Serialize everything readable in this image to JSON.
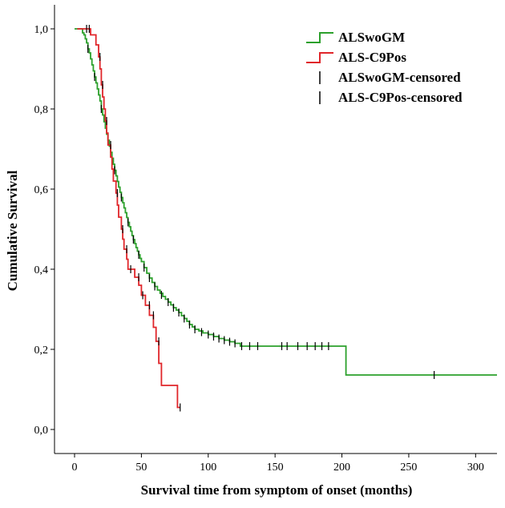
{
  "chart_data": {
    "type": "line",
    "subtype": "kaplan-meier step",
    "title": "",
    "xlabel": "Survival time from symptom of onset (months)",
    "ylabel": "Cumulative Survival",
    "xlim": [
      -15,
      316
    ],
    "ylim": [
      -0.06,
      1.06
    ],
    "x_ticks": [
      0,
      50,
      100,
      150,
      200,
      250,
      300
    ],
    "x_tick_labels": [
      "0",
      "50",
      "100",
      "150",
      "200",
      "250",
      "300"
    ],
    "y_ticks": [
      0.0,
      0.2,
      0.4,
      0.6,
      0.8,
      1.0
    ],
    "y_tick_labels": [
      "0,0",
      "0,2",
      "0,4",
      "0,6",
      "0,8",
      "1,0"
    ],
    "grid": false,
    "legend_position": "top-right",
    "legend": [
      {
        "label": "ALSwoGM",
        "symbol": "step",
        "color": "#2ca02c"
      },
      {
        "label": "ALS-C9Pos",
        "symbol": "step",
        "color": "#e0252a"
      },
      {
        "label": "ALSwoGM-censored",
        "symbol": "tick",
        "color": "#000000"
      },
      {
        "label": "ALS-C9Pos-censored",
        "symbol": "tick",
        "color": "#000000"
      }
    ],
    "series": [
      {
        "name": "ALSwoGM",
        "color": "#2ca02c",
        "steps": [
          [
            0,
            1.0
          ],
          [
            5,
            1.0
          ],
          [
            6,
            0.99
          ],
          [
            7,
            0.985
          ],
          [
            8,
            0.975
          ],
          [
            9,
            0.965
          ],
          [
            10,
            0.95
          ],
          [
            11,
            0.94
          ],
          [
            12,
            0.925
          ],
          [
            13,
            0.91
          ],
          [
            14,
            0.895
          ],
          [
            15,
            0.88
          ],
          [
            16,
            0.865
          ],
          [
            17,
            0.85
          ],
          [
            18,
            0.835
          ],
          [
            19,
            0.82
          ],
          [
            20,
            0.8
          ],
          [
            21,
            0.785
          ],
          [
            22,
            0.768
          ],
          [
            23,
            0.752
          ],
          [
            24,
            0.737
          ],
          [
            25,
            0.722
          ],
          [
            26,
            0.707
          ],
          [
            27,
            0.692
          ],
          [
            28,
            0.677
          ],
          [
            29,
            0.662
          ],
          [
            30,
            0.647
          ],
          [
            31,
            0.633
          ],
          [
            32,
            0.619
          ],
          [
            33,
            0.605
          ],
          [
            34,
            0.592
          ],
          [
            35,
            0.579
          ],
          [
            36,
            0.566
          ],
          [
            37,
            0.553
          ],
          [
            38,
            0.541
          ],
          [
            39,
            0.529
          ],
          [
            40,
            0.517
          ],
          [
            41,
            0.506
          ],
          [
            42,
            0.495
          ],
          [
            43,
            0.484
          ],
          [
            44,
            0.474
          ],
          [
            45,
            0.464
          ],
          [
            46,
            0.454
          ],
          [
            47,
            0.445
          ],
          [
            48,
            0.436
          ],
          [
            49,
            0.427
          ],
          [
            50,
            0.419
          ],
          [
            52,
            0.404
          ],
          [
            54,
            0.39
          ],
          [
            56,
            0.378
          ],
          [
            58,
            0.367
          ],
          [
            60,
            0.357
          ],
          [
            62,
            0.348
          ],
          [
            64,
            0.34
          ],
          [
            66,
            0.332
          ],
          [
            68,
            0.325
          ],
          [
            70,
            0.318
          ],
          [
            72,
            0.311
          ],
          [
            74,
            0.304
          ],
          [
            76,
            0.298
          ],
          [
            78,
            0.292
          ],
          [
            80,
            0.284
          ],
          [
            82,
            0.277
          ],
          [
            84,
            0.27
          ],
          [
            86,
            0.262
          ],
          [
            88,
            0.256
          ],
          [
            90,
            0.25
          ],
          [
            93,
            0.246
          ],
          [
            96,
            0.241
          ],
          [
            100,
            0.237
          ],
          [
            104,
            0.232
          ],
          [
            108,
            0.227
          ],
          [
            112,
            0.223
          ],
          [
            116,
            0.219
          ],
          [
            120,
            0.215
          ],
          [
            124,
            0.208
          ],
          [
            203,
            0.208
          ],
          [
            203,
            0.136
          ],
          [
            316,
            0.136
          ]
        ],
        "censored": [
          [
            10,
            0.95
          ],
          [
            15,
            0.88
          ],
          [
            20,
            0.8
          ],
          [
            25,
            0.722
          ],
          [
            30,
            0.647
          ],
          [
            35,
            0.579
          ],
          [
            40,
            0.517
          ],
          [
            44,
            0.474
          ],
          [
            48,
            0.436
          ],
          [
            52,
            0.404
          ],
          [
            56,
            0.378
          ],
          [
            60,
            0.357
          ],
          [
            65,
            0.336
          ],
          [
            70,
            0.318
          ],
          [
            74,
            0.304
          ],
          [
            78,
            0.292
          ],
          [
            82,
            0.277
          ],
          [
            86,
            0.262
          ],
          [
            90,
            0.25
          ],
          [
            95,
            0.243
          ],
          [
            100,
            0.237
          ],
          [
            104,
            0.232
          ],
          [
            108,
            0.227
          ],
          [
            112,
            0.223
          ],
          [
            116,
            0.219
          ],
          [
            120,
            0.215
          ],
          [
            125,
            0.208
          ],
          [
            131,
            0.208
          ],
          [
            137,
            0.208
          ],
          [
            155,
            0.208
          ],
          [
            159,
            0.208
          ],
          [
            167,
            0.208
          ],
          [
            174,
            0.208
          ],
          [
            180,
            0.208
          ],
          [
            185,
            0.208
          ],
          [
            190,
            0.208
          ],
          [
            269,
            0.136
          ]
        ]
      },
      {
        "name": "ALS-C9Pos",
        "color": "#e0252a",
        "steps": [
          [
            2,
            1.0
          ],
          [
            12,
            1.0
          ],
          [
            12,
            0.985
          ],
          [
            16,
            0.985
          ],
          [
            16,
            0.96
          ],
          [
            18,
            0.96
          ],
          [
            18,
            0.93
          ],
          [
            19,
            0.93
          ],
          [
            19,
            0.9
          ],
          [
            20,
            0.9
          ],
          [
            20,
            0.86
          ],
          [
            21,
            0.86
          ],
          [
            21,
            0.83
          ],
          [
            22,
            0.83
          ],
          [
            22,
            0.8
          ],
          [
            23,
            0.8
          ],
          [
            23,
            0.77
          ],
          [
            24,
            0.77
          ],
          [
            24,
            0.74
          ],
          [
            25,
            0.74
          ],
          [
            25,
            0.71
          ],
          [
            27,
            0.71
          ],
          [
            27,
            0.68
          ],
          [
            28,
            0.68
          ],
          [
            28,
            0.65
          ],
          [
            29,
            0.65
          ],
          [
            29,
            0.62
          ],
          [
            31,
            0.62
          ],
          [
            31,
            0.59
          ],
          [
            32,
            0.59
          ],
          [
            32,
            0.56
          ],
          [
            33,
            0.56
          ],
          [
            33,
            0.53
          ],
          [
            35,
            0.53
          ],
          [
            35,
            0.5
          ],
          [
            36,
            0.5
          ],
          [
            36,
            0.475
          ],
          [
            37,
            0.475
          ],
          [
            37,
            0.45
          ],
          [
            39,
            0.45
          ],
          [
            39,
            0.425
          ],
          [
            40,
            0.425
          ],
          [
            40,
            0.4
          ],
          [
            45,
            0.4
          ],
          [
            45,
            0.38
          ],
          [
            48,
            0.38
          ],
          [
            48,
            0.36
          ],
          [
            50,
            0.36
          ],
          [
            50,
            0.335
          ],
          [
            53,
            0.335
          ],
          [
            53,
            0.31
          ],
          [
            56,
            0.31
          ],
          [
            56,
            0.285
          ],
          [
            59,
            0.285
          ],
          [
            59,
            0.255
          ],
          [
            61,
            0.255
          ],
          [
            61,
            0.22
          ],
          [
            63,
            0.22
          ],
          [
            63,
            0.165
          ],
          [
            65,
            0.165
          ],
          [
            65,
            0.11
          ],
          [
            77,
            0.11
          ],
          [
            77,
            0.055
          ],
          [
            79,
            0.055
          ]
        ],
        "censored": [
          [
            9,
            1.0
          ],
          [
            11,
            1.0
          ],
          [
            19,
            0.93
          ],
          [
            21,
            0.86
          ],
          [
            24,
            0.77
          ],
          [
            27,
            0.71
          ],
          [
            32,
            0.59
          ],
          [
            36,
            0.5
          ],
          [
            39,
            0.45
          ],
          [
            42,
            0.4
          ],
          [
            48,
            0.38
          ],
          [
            51,
            0.335
          ],
          [
            56,
            0.31
          ],
          [
            59,
            0.285
          ],
          [
            63,
            0.22
          ],
          [
            79,
            0.055
          ]
        ]
      }
    ]
  }
}
